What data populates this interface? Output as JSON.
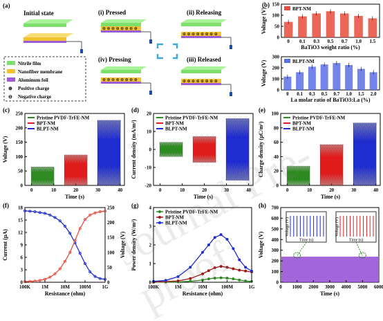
{
  "panel_a": {
    "label": "(a)",
    "titles": [
      "Initial state",
      "(i) Pressed",
      "(ii) Releasing",
      "(iv) Pressing",
      "(iii) Released"
    ],
    "legend": [
      "Nitrile film",
      "Nanofiber membrane",
      "Aluminum foil",
      "Positive charge",
      "Negative charge"
    ],
    "colors": {
      "nitrile": "#7ee06c",
      "nanofiber": "#f1c232",
      "aluminum": "#9d5ad7"
    }
  },
  "chart_data": [
    {
      "id": "b1",
      "type": "bar",
      "label": "(b)",
      "legend": [
        "BPT-NM"
      ],
      "categories": [
        "0",
        "0.1",
        "0.3",
        "0.5",
        "0.7",
        "1.0",
        "1.5"
      ],
      "values": [
        70,
        95,
        108,
        118,
        108,
        97,
        86
      ],
      "xlabel": "BaTiO3 weight ratio (%)",
      "ylabel": "Voltage (V)",
      "ylim": [
        0,
        150
      ],
      "yticks": [
        "0",
        "50",
        "100",
        "150"
      ],
      "color": "#e74c3c"
    },
    {
      "id": "b2",
      "type": "bar",
      "legend": [
        "BLPT-NM"
      ],
      "categories": [
        "0",
        "0.1",
        "0.3",
        "0.5",
        "0.7",
        "1.0",
        "1.5",
        "2.0"
      ],
      "values": [
        120,
        160,
        210,
        230,
        243,
        225,
        190,
        160
      ],
      "xlabel": "La molar ratio of BaTiO3:La (%)",
      "ylabel": "Voltage (V)",
      "ylim": [
        0,
        300
      ],
      "yticks": [
        "0",
        "100",
        "200",
        "300"
      ],
      "color": "#5b6ee6"
    },
    {
      "id": "c",
      "type": "line",
      "label": "(c)",
      "series": [
        {
          "name": "Pristine PVDF-TrFE-NM",
          "color": "#2e8b22",
          "x": [
            0,
            10
          ],
          "amp": 70
        },
        {
          "name": "BPT-NM",
          "color": "#e01b1b",
          "x": [
            15,
            25
          ],
          "amp": 115
        },
        {
          "name": "BLPT-NM",
          "color": "#1f2ccf",
          "x": [
            30,
            40
          ],
          "amp": 245
        }
      ],
      "xlabel": "Time (s)",
      "ylabel": "Voltage (V)",
      "xticks": [
        "0",
        "10",
        "20",
        "30",
        "40"
      ],
      "yticks": [
        "0",
        "50",
        "100",
        "150",
        "200",
        "250"
      ],
      "xlim": [
        -3,
        42
      ],
      "ylim": [
        0,
        270
      ]
    },
    {
      "id": "d",
      "type": "line",
      "label": "(d)",
      "series": [
        {
          "name": "Pristine PVDF-TrFE-NM",
          "color": "#2e8b22",
          "x": [
            0,
            10
          ],
          "amp": 4.5
        },
        {
          "name": "BPT-NM",
          "color": "#e01b1b",
          "x": [
            15,
            25
          ],
          "amp": 8
        },
        {
          "name": "BLPT-NM",
          "color": "#1f2ccf",
          "x": [
            30,
            40
          ],
          "amp": 19
        }
      ],
      "xlabel": "Time (s)",
      "ylabel": "Current density (mA/m²)",
      "xticks": [
        "0",
        "10",
        "20",
        "30",
        "40"
      ],
      "yticks": [
        "-20",
        "-10",
        "0",
        "10",
        "20"
      ],
      "xlim": [
        -3,
        42
      ],
      "ylim": [
        -22,
        22
      ]
    },
    {
      "id": "e",
      "type": "line",
      "label": "(e)",
      "series": [
        {
          "name": "Pristine PVDF-TrFE-NM",
          "color": "#2e8b22",
          "x": [
            0,
            10
          ],
          "amp": 27
        },
        {
          "name": "BPT-NM",
          "color": "#e01b1b",
          "x": [
            15,
            25
          ],
          "amp": 57
        },
        {
          "name": "BLPT-NM",
          "color": "#1f2ccf",
          "x": [
            30,
            40
          ],
          "amp": 87
        }
      ],
      "xlabel": "Time (s)",
      "ylabel": "Charge density (μC/m²)",
      "xticks": [
        "0",
        "10",
        "20",
        "30",
        "40"
      ],
      "yticks": [
        "0",
        "20",
        "40",
        "60",
        "80",
        "100"
      ],
      "xlim": [
        -3,
        42
      ],
      "ylim": [
        0,
        100
      ]
    },
    {
      "id": "f",
      "type": "line",
      "label": "(f)",
      "x": [
        5,
        5.25,
        5.5,
        5.75,
        6,
        6.25,
        6.5,
        6.75,
        7,
        7.25,
        7.5,
        7.75,
        8,
        8.25,
        8.5,
        8.75,
        9
      ],
      "series": [
        {
          "name": "Current",
          "color": "#1f2ccf",
          "values": [
            17.2,
            17.1,
            17.0,
            16.8,
            16.6,
            16.2,
            15.6,
            14.8,
            13.5,
            11.8,
            9.5,
            7.0,
            4.5,
            2.5,
            1.4,
            0.9,
            0.7
          ]
        },
        {
          "name": "Voltage",
          "color": "#e74c3c",
          "values": [
            2,
            3,
            4,
            6,
            10,
            17,
            28,
            45,
            70,
            100,
            140,
            180,
            210,
            225,
            232,
            236,
            238
          ]
        }
      ],
      "xlabel": "Resistance (ohm)",
      "ylabel": "Current (μA)",
      "y2label": "Voltage (V)",
      "xticks": [
        "100K",
        "1M",
        "10M",
        "100M",
        "1G"
      ],
      "yticks": [
        "0",
        "3",
        "6",
        "9",
        "12",
        "15",
        "18"
      ],
      "y2ticks": [
        "0",
        "50",
        "100",
        "150",
        "200",
        "250"
      ],
      "ylim": [
        0,
        18
      ],
      "y2lim": [
        0,
        250
      ]
    },
    {
      "id": "g",
      "type": "line",
      "label": "(g)",
      "x": [
        5,
        5.5,
        6,
        6.5,
        7,
        7.25,
        7.5,
        7.75,
        8,
        8.25,
        8.5,
        8.75,
        9
      ],
      "series": [
        {
          "name": "Pristine PVDF-TrFE-NM",
          "color": "#2e8b22",
          "values": [
            0.0,
            0.01,
            0.02,
            0.05,
            0.12,
            0.18,
            0.22,
            0.24,
            0.22,
            0.18,
            0.12,
            0.07,
            0.04
          ]
        },
        {
          "name": "BPT-NM",
          "color": "#a01818",
          "values": [
            0.02,
            0.04,
            0.07,
            0.2,
            0.45,
            0.62,
            0.78,
            0.85,
            0.8,
            0.72,
            0.65,
            0.6,
            0.55
          ]
        },
        {
          "name": "BLPT-NM",
          "color": "#1f2ccf",
          "values": [
            0.05,
            0.1,
            0.3,
            0.8,
            1.6,
            2.0,
            2.4,
            2.55,
            2.3,
            1.8,
            1.2,
            0.8,
            0.6
          ]
        }
      ],
      "xlabel": "Resistance (ohm)",
      "ylabel": "Power density (W/m²)",
      "xticks": [
        "100K",
        "1M",
        "10M",
        "100M",
        "1G"
      ],
      "yticks": [
        "0",
        "1",
        "2",
        "3",
        "4"
      ],
      "ylim": [
        0,
        4
      ]
    },
    {
      "id": "h",
      "type": "line",
      "label": "(h)",
      "xlabel": "Time (s)",
      "ylabel": "Voltage (V)",
      "xticks": [
        "0",
        "1000",
        "2000",
        "3000",
        "4000",
        "5000",
        "6000"
      ],
      "yticks": [
        "0",
        "100",
        "200",
        "300",
        "400",
        "500",
        "600",
        "700"
      ],
      "xlim": [
        0,
        6000
      ],
      "ylim": [
        0,
        700
      ],
      "amp": 240,
      "color": "#8b3fd1",
      "inset_xlabel": "Time (s)",
      "inset_ylabel": "Voltage (V)"
    }
  ]
}
